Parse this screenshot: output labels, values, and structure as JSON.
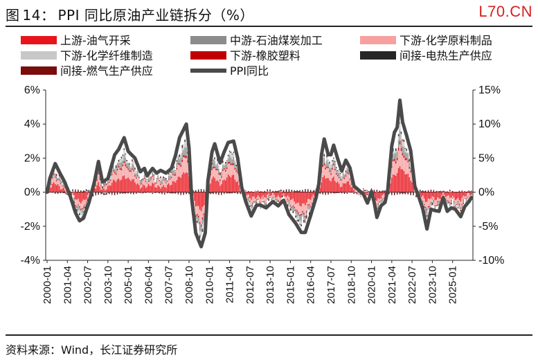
{
  "title": {
    "fig_label": "图",
    "fig_num": "14：",
    "text": "PPI 同比原油产业链拆分（%）"
  },
  "watermark": "L70.CN",
  "source": "资料来源：Wind，长江证券研究所",
  "colors": {
    "upstream_oil": "#e8141c",
    "midstream_petro": "#8c8c8c",
    "down_chem": "#f6a0a0",
    "down_fiber": "#c8c8c8",
    "down_rubber": "#c00000",
    "indirect_heat": "#262626",
    "indirect_gas": "#7a0c0c",
    "ppi": "#4a4a4a"
  },
  "chart_data": {
    "type": "bar+line",
    "title": "PPI 同比原油产业链拆分（%）",
    "x_start": "2000-01",
    "x_end": "2026-03",
    "xtick_labels": [
      "2000-01",
      "2001-04",
      "2002-07",
      "2003-10",
      "2005-01",
      "2006-04",
      "2007-07",
      "2008-10",
      "2010-01",
      "2011-04",
      "2012-07",
      "2013-10",
      "2015-01",
      "2016-04",
      "2017-07",
      "2018-10",
      "2020-01",
      "2021-04",
      "2022-07",
      "2023-10",
      "2025-01"
    ],
    "y_left": {
      "min": -4,
      "max": 6,
      "ticks": [
        "-4%",
        "-2%",
        "0%",
        "2%",
        "4%",
        "6%"
      ],
      "unit": "%"
    },
    "y_right": {
      "min": -10,
      "max": 15,
      "ticks": [
        "-10%",
        "-5%",
        "0%",
        "5%",
        "10%",
        "15%"
      ],
      "unit": "%"
    },
    "legend": [
      {
        "key": "upstream_oil",
        "label": "上游-油气开采",
        "kind": "bar"
      },
      {
        "key": "midstream_petro",
        "label": "中游-石油煤炭加工",
        "kind": "bar"
      },
      {
        "key": "down_chem",
        "label": "下游-化学原料制品",
        "kind": "bar"
      },
      {
        "key": "down_fiber",
        "label": "下游-化学纤维制造",
        "kind": "bar"
      },
      {
        "key": "down_rubber",
        "label": "下游-橡胶塑料",
        "kind": "bar"
      },
      {
        "key": "indirect_heat",
        "label": "间接-电热生产供应",
        "kind": "bar"
      },
      {
        "key": "indirect_gas",
        "label": "间接-燃气生产供应",
        "kind": "bar"
      },
      {
        "key": "ppi",
        "label": "PPI同比",
        "kind": "line"
      }
    ],
    "ppi_yoy_right_axis": {
      "description": "approximate PPI YoY (%) anchor points read from chart, monthly interpolation",
      "anchors": [
        [
          "2000-01",
          0.0
        ],
        [
          "2000-03",
          2.0
        ],
        [
          "2000-07",
          4.2
        ],
        [
          "2000-10",
          3.0
        ],
        [
          "2001-02",
          1.5
        ],
        [
          "2001-06",
          -0.5
        ],
        [
          "2001-10",
          -3.0
        ],
        [
          "2002-01",
          -4.2
        ],
        [
          "2002-04",
          -3.8
        ],
        [
          "2002-08",
          -1.5
        ],
        [
          "2002-12",
          1.5
        ],
        [
          "2003-03",
          4.5
        ],
        [
          "2003-06",
          1.5
        ],
        [
          "2003-10",
          2.0
        ],
        [
          "2004-03",
          5.5
        ],
        [
          "2004-06",
          6.3
        ],
        [
          "2004-10",
          8.0
        ],
        [
          "2005-01",
          6.0
        ],
        [
          "2005-06",
          5.0
        ],
        [
          "2005-10",
          3.0
        ],
        [
          "2006-01",
          3.5
        ],
        [
          "2006-03",
          2.4
        ],
        [
          "2006-07",
          3.5
        ],
        [
          "2006-10",
          2.8
        ],
        [
          "2007-01",
          3.2
        ],
        [
          "2007-05",
          2.8
        ],
        [
          "2007-09",
          3.5
        ],
        [
          "2007-12",
          5.4
        ],
        [
          "2008-03",
          8.0
        ],
        [
          "2008-08",
          10.0
        ],
        [
          "2008-10",
          6.5
        ],
        [
          "2008-12",
          -1.0
        ],
        [
          "2009-03",
          -6.0
        ],
        [
          "2009-07",
          -8.0
        ],
        [
          "2009-10",
          -6.0
        ],
        [
          "2009-12",
          1.7
        ],
        [
          "2010-03",
          5.9
        ],
        [
          "2010-05",
          7.1
        ],
        [
          "2010-09",
          4.3
        ],
        [
          "2010-12",
          5.9
        ],
        [
          "2011-03",
          7.3
        ],
        [
          "2011-07",
          7.5
        ],
        [
          "2011-10",
          5.0
        ],
        [
          "2012-01",
          0.7
        ],
        [
          "2012-04",
          -1.4
        ],
        [
          "2012-08",
          -3.5
        ],
        [
          "2012-12",
          -1.9
        ],
        [
          "2013-03",
          -1.9
        ],
        [
          "2013-07",
          -2.3
        ],
        [
          "2013-12",
          -1.4
        ],
        [
          "2014-04",
          -2.0
        ],
        [
          "2014-08",
          -1.2
        ],
        [
          "2014-12",
          -3.3
        ],
        [
          "2015-05",
          -4.6
        ],
        [
          "2015-09",
          -5.9
        ],
        [
          "2015-12",
          -5.9
        ],
        [
          "2016-04",
          -3.4
        ],
        [
          "2016-08",
          -0.8
        ],
        [
          "2016-10",
          1.2
        ],
        [
          "2016-12",
          5.5
        ],
        [
          "2017-02",
          7.8
        ],
        [
          "2017-05",
          5.5
        ],
        [
          "2017-07",
          5.5
        ],
        [
          "2017-09",
          6.9
        ],
        [
          "2017-12",
          4.9
        ],
        [
          "2018-03",
          3.1
        ],
        [
          "2018-06",
          4.7
        ],
        [
          "2018-09",
          3.6
        ],
        [
          "2018-12",
          0.9
        ],
        [
          "2019-03",
          0.4
        ],
        [
          "2019-07",
          -0.3
        ],
        [
          "2019-10",
          -1.6
        ],
        [
          "2020-01",
          0.1
        ],
        [
          "2020-03",
          -1.5
        ],
        [
          "2020-05",
          -3.7
        ],
        [
          "2020-08",
          -2.0
        ],
        [
          "2020-11",
          -1.5
        ],
        [
          "2021-01",
          0.3
        ],
        [
          "2021-04",
          6.8
        ],
        [
          "2021-06",
          8.8
        ],
        [
          "2021-08",
          9.5
        ],
        [
          "2021-10",
          13.5
        ],
        [
          "2021-12",
          10.3
        ],
        [
          "2022-03",
          8.3
        ],
        [
          "2022-06",
          6.1
        ],
        [
          "2022-09",
          0.9
        ],
        [
          "2022-12",
          -0.7
        ],
        [
          "2023-03",
          -2.5
        ],
        [
          "2023-06",
          -5.4
        ],
        [
          "2023-09",
          -2.5
        ],
        [
          "2023-12",
          -2.7
        ],
        [
          "2024-03",
          -2.8
        ],
        [
          "2024-06",
          -0.8
        ],
        [
          "2024-09",
          -2.8
        ],
        [
          "2024-12",
          -2.3
        ],
        [
          "2025-03",
          -2.5
        ],
        [
          "2025-07",
          -3.6
        ],
        [
          "2025-10",
          -2.1
        ],
        [
          "2026-01",
          -1.4
        ],
        [
          "2026-03",
          -0.8
        ]
      ]
    },
    "contribution_note": "stacked monthly contributions (left axis, pp); upstream oil+gas and chemicals dominate, midstream petroleum processing and chemical fibers smaller; shapes approximated from chart"
  }
}
